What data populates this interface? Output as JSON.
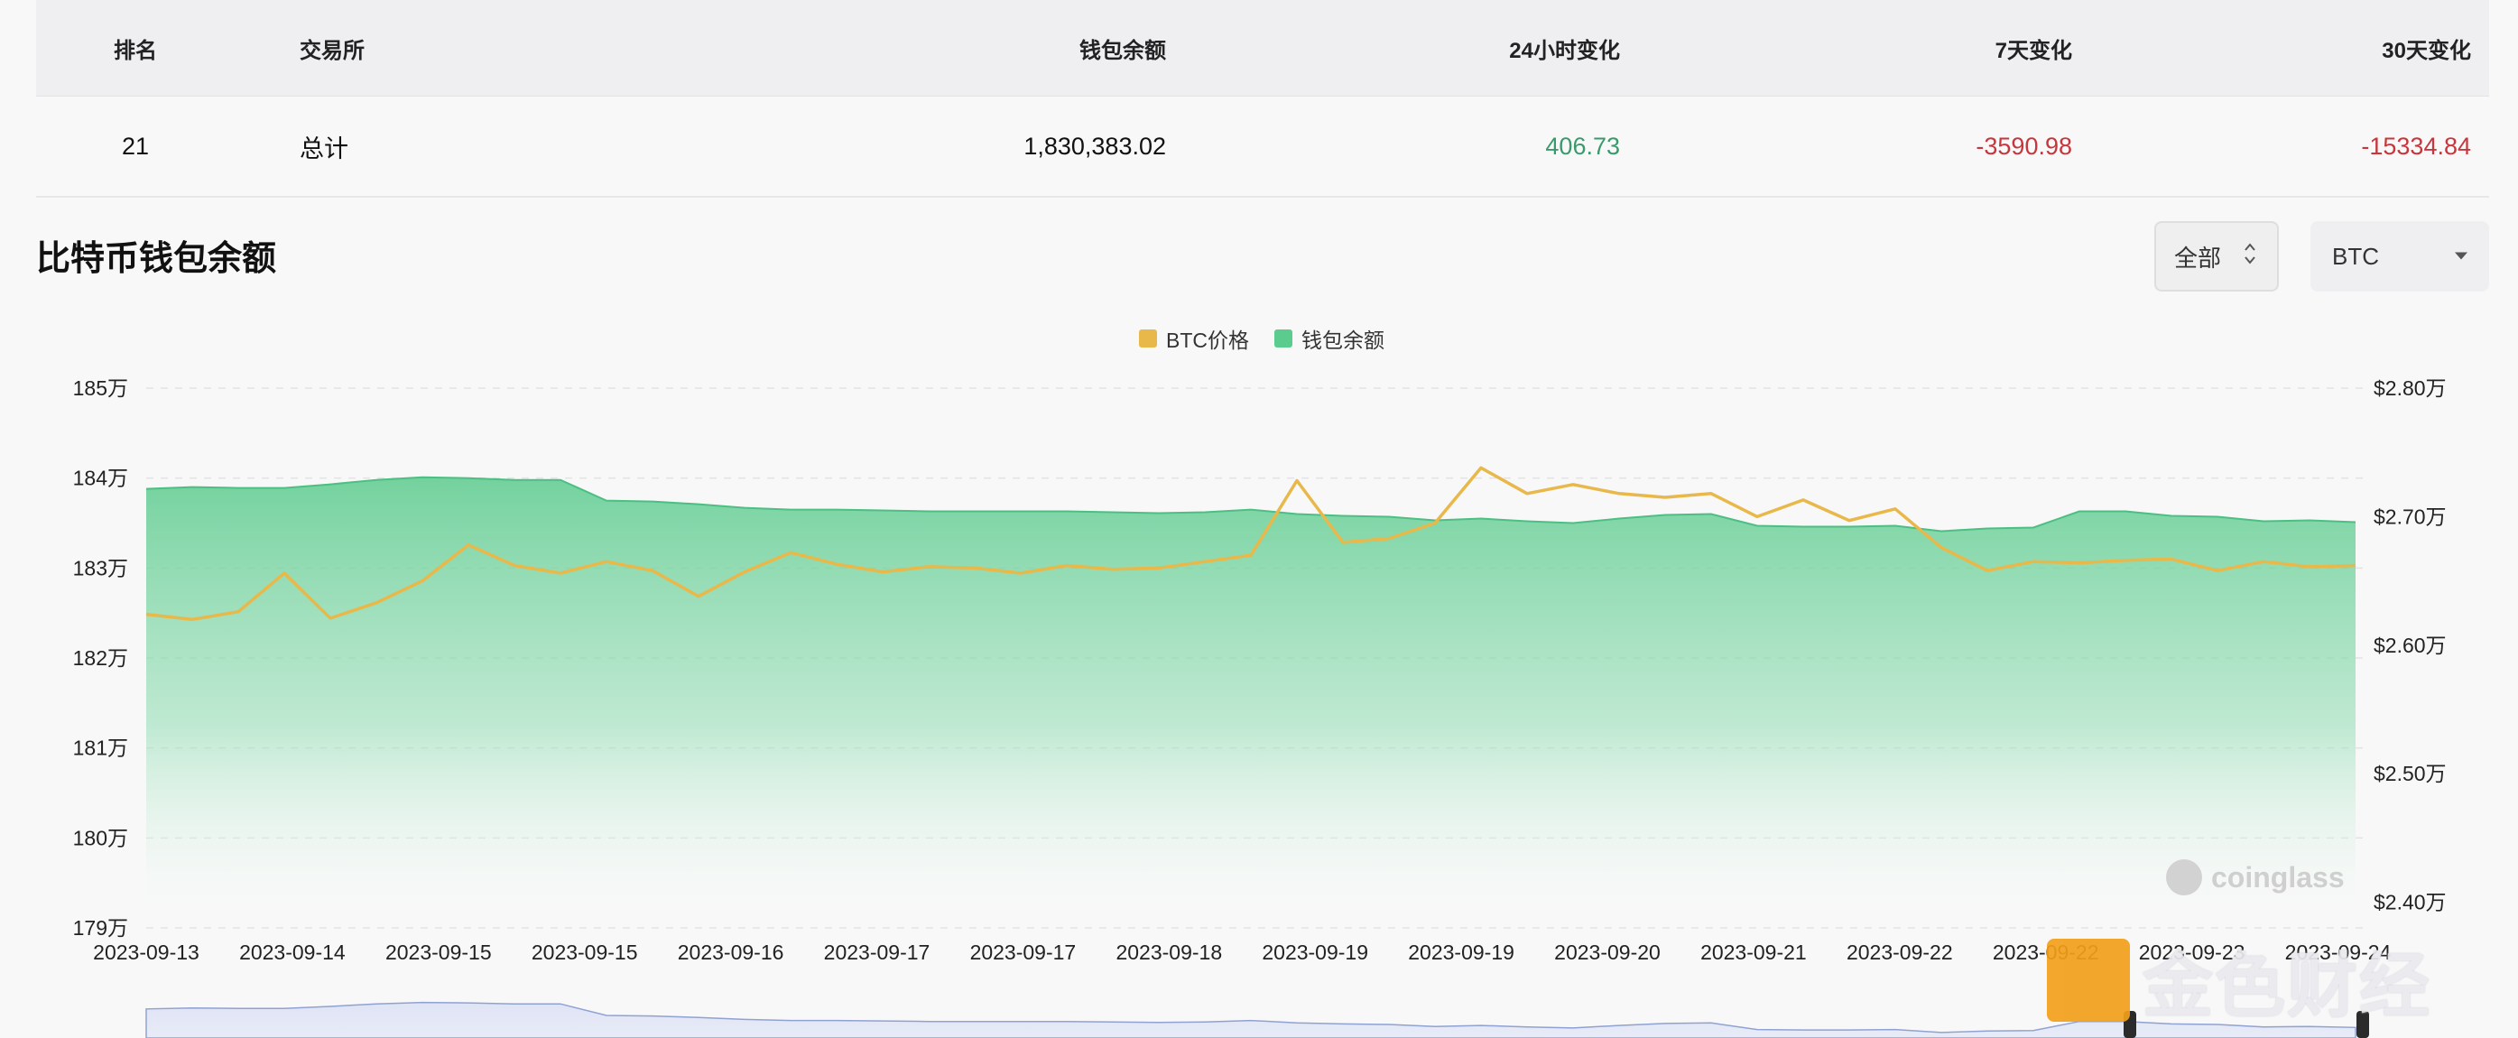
{
  "table": {
    "headers": {
      "rank": "排名",
      "exchange": "交易所",
      "balance": "钱包余额",
      "change_24h": "24小时变化",
      "change_7d": "7天变化",
      "change_30d": "30天变化"
    },
    "rows": [
      {
        "rank": "21",
        "exchange": "总计",
        "balance": "1,830,383.02",
        "change_24h": "406.73",
        "change_7d": "-3590.98",
        "change_30d": "-15334.84"
      }
    ]
  },
  "section": {
    "title": "比特币钱包余额",
    "range_select": "全部",
    "coin_select": "BTC"
  },
  "colors": {
    "price_line": "#e8b84a",
    "balance_area": "#5ccb8e",
    "positive": "#3a9a6c",
    "negative": "#c8363d",
    "navigator": "#8fa2d2"
  },
  "watermarks": {
    "coinglass": "coinglass",
    "brand": "金色财经"
  },
  "chart_data": {
    "type": "area",
    "legend": [
      "BTC价格",
      "钱包余额"
    ],
    "legend_position": "top-center",
    "grid": true,
    "x_ticks": [
      "2023-09-13",
      "2023-09-14",
      "2023-09-15",
      "2023-09-15",
      "2023-09-16",
      "2023-09-17",
      "2023-09-17",
      "2023-09-18",
      "2023-09-19",
      "2023-09-19",
      "2023-09-20",
      "2023-09-21",
      "2023-09-22",
      "2023-09-22",
      "2023-09-23",
      "2023-09-24"
    ],
    "y_left": {
      "ticks": [
        "185万",
        "184万",
        "183万",
        "182万",
        "181万",
        "180万",
        "179万"
      ],
      "range": [
        1790000,
        1850000
      ]
    },
    "y_right": {
      "ticks": [
        "$2.80万",
        "$2.70万",
        "$2.60万",
        "$2.50万",
        "$2.40万"
      ],
      "range": [
        23800,
        28000
      ]
    },
    "series": [
      {
        "name": "钱包余额",
        "axis": "left",
        "type": "area",
        "values": [
          1838800,
          1839000,
          1838900,
          1838900,
          1839300,
          1839800,
          1840100,
          1840000,
          1839800,
          1839800,
          1837500,
          1837400,
          1837100,
          1836700,
          1836500,
          1836500,
          1836400,
          1836300,
          1836300,
          1836300,
          1836300,
          1836200,
          1836100,
          1836200,
          1836500,
          1836000,
          1835800,
          1835700,
          1835300,
          1835500,
          1835200,
          1835000,
          1835500,
          1835900,
          1836000,
          1834700,
          1834600,
          1834600,
          1834700,
          1834100,
          1834400,
          1834500,
          1836300,
          1836300,
          1835800,
          1835700,
          1835200,
          1835300,
          1835100
        ]
      },
      {
        "name": "BTC价格",
        "axis": "right",
        "type": "line",
        "values": [
          26240,
          26200,
          26260,
          26560,
          26210,
          26330,
          26500,
          26780,
          26620,
          26560,
          26650,
          26580,
          26380,
          26570,
          26720,
          26630,
          26570,
          26610,
          26600,
          26560,
          26620,
          26590,
          26600,
          26650,
          26700,
          27280,
          26800,
          26830,
          26950,
          27380,
          27180,
          27250,
          27180,
          27150,
          27180,
          27000,
          27130,
          26970,
          27060,
          26760,
          26580,
          26650,
          26640,
          26660,
          26670,
          26580,
          26650,
          26610,
          26620
        ]
      }
    ]
  }
}
